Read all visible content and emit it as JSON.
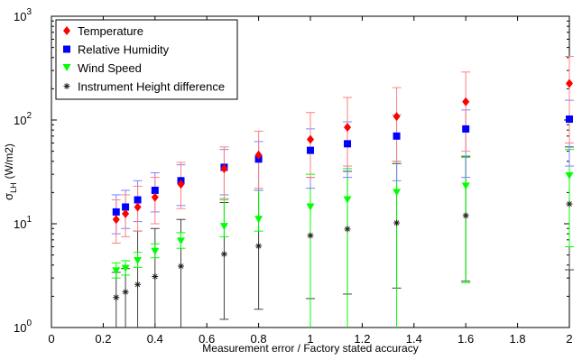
{
  "chart_data": {
    "type": "scatter",
    "xlabel": "Measurement error / Factory stated accuracy",
    "ylabel_main": "σ",
    "ylabel_sub": "LH",
    "ylabel_unit": "(W/m2)",
    "xlim": [
      0,
      2
    ],
    "ylim": [
      1,
      1000
    ],
    "yscale": "log",
    "grid": false,
    "legend_position": "top-left",
    "x_ticks": [
      "0",
      "0.2",
      "0.4",
      "0.6",
      "0.8",
      "1",
      "1.2",
      "1.4",
      "1.6",
      "1.8",
      "2"
    ],
    "y_ticks": [
      {
        "base": "10",
        "exp": "0"
      },
      {
        "base": "10",
        "exp": "1"
      },
      {
        "base": "10",
        "exp": "2"
      },
      {
        "base": "10",
        "exp": "3"
      }
    ],
    "series": [
      {
        "name": "Temperature",
        "marker": "diamond",
        "color": "#ff0000",
        "errorbar_color": "#ff8080",
        "x": [
          0.25,
          0.286,
          0.333,
          0.4,
          0.5,
          0.667,
          0.8,
          1.0,
          1.143,
          1.333,
          1.6,
          2.0
        ],
        "y": [
          11,
          12.5,
          14.5,
          18,
          24,
          34,
          46,
          65,
          85,
          108,
          150,
          225
        ],
        "err_low": [
          6.5,
          7.5,
          8.5,
          10,
          14,
          17,
          22,
          28,
          36,
          40,
          50,
          60
        ],
        "err_high": [
          17,
          19,
          23,
          28,
          39,
          55,
          78,
          118,
          165,
          205,
          290,
          410
        ]
      },
      {
        "name": "Relative Humidity",
        "marker": "square",
        "color": "#0000ff",
        "errorbar_color": "#8080ff",
        "x": [
          0.25,
          0.286,
          0.333,
          0.4,
          0.5,
          0.667,
          0.8,
          1.0,
          1.143,
          1.333,
          1.6,
          2.0
        ],
        "y": [
          13,
          14.5,
          17,
          21,
          26,
          35,
          42,
          51,
          59,
          70,
          82,
          102
        ],
        "err_low": [
          8,
          9,
          10.5,
          13,
          15,
          19,
          21,
          22,
          28,
          26,
          28,
          36
        ],
        "err_high": [
          19,
          21,
          26,
          31,
          37,
          52,
          62,
          82,
          96,
          112,
          125,
          155
        ]
      },
      {
        "name": "Wind Speed",
        "marker": "triangle-down",
        "color": "#00ff00",
        "errorbar_color": "#00ff00",
        "x": [
          0.25,
          0.286,
          0.333,
          0.4,
          0.5,
          0.667,
          0.8,
          1.0,
          1.143,
          1.333,
          1.6,
          2.0
        ],
        "y": [
          3.5,
          3.7,
          4.4,
          5.4,
          6.8,
          9.4,
          11,
          14.5,
          17,
          20,
          23,
          29
        ],
        "err_low": [
          3.0,
          3.2,
          3.8,
          4.7,
          5.8,
          7.5,
          8.5,
          1,
          1,
          1,
          2.7,
          6
        ],
        "err_high": [
          4.2,
          4.4,
          5.3,
          6.4,
          8.2,
          17.5,
          21,
          30,
          34,
          40,
          45,
          52
        ]
      },
      {
        "name": "Instrument Height difference",
        "marker": "asterisk",
        "color": "#202020",
        "errorbar_color": "#404040",
        "x": [
          0.25,
          0.286,
          0.333,
          0.4,
          0.5,
          0.667,
          0.8,
          1.0,
          1.143,
          1.333,
          1.6,
          2.0
        ],
        "y": [
          1.95,
          2.2,
          2.6,
          3.1,
          3.9,
          5.1,
          6.1,
          7.7,
          8.9,
          10.2,
          12,
          15.5
        ],
        "err_low": [
          1,
          1,
          1,
          1,
          1,
          1.2,
          1.5,
          1.9,
          2.1,
          2.4,
          2.8,
          3.6
        ],
        "err_high": [
          3.4,
          3.7,
          8.5,
          9,
          11,
          16,
          21,
          28,
          32,
          38,
          44,
          55
        ]
      }
    ]
  }
}
